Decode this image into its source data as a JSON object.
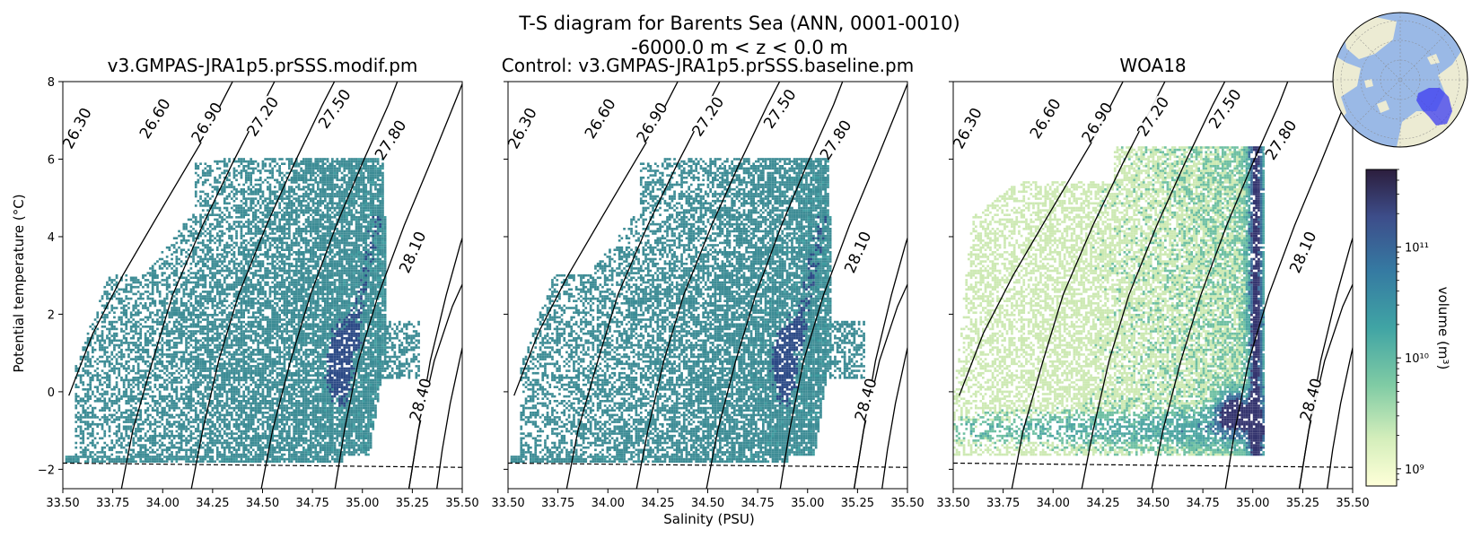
{
  "figure": {
    "title_line1": "T-S diagram for Barents Sea (ANN, 0001-0010)",
    "title_line2": "-6000.0 m < z < 0.0 m",
    "xlabel": "Salinity (PSU)",
    "ylabel": "Potential temperature (°C)"
  },
  "chart_data": {
    "type": "heatmap",
    "xlim": [
      33.5,
      35.5
    ],
    "ylim": [
      -2.5,
      8
    ],
    "xticks": [
      "33.50",
      "33.75",
      "34.00",
      "34.25",
      "34.50",
      "34.75",
      "35.00",
      "35.25",
      "35.50"
    ],
    "yticks": [
      "−2",
      "0",
      "2",
      "4",
      "6",
      "8"
    ],
    "panels": [
      {
        "title": "v3.GMPAS-JRA1p5.prSSS.modif.pm"
      },
      {
        "title": "Control: v3.GMPAS-JRA1p5.prSSS.baseline.pm"
      },
      {
        "title": "WOA18"
      }
    ],
    "density_contours": [
      "26.30",
      "26.60",
      "26.90",
      "27.20",
      "27.50",
      "27.80",
      "28.10",
      "28.40"
    ],
    "freezing_line": {
      "style": "dashed",
      "points": [
        [
          33.5,
          -1.84
        ],
        [
          35.5,
          -1.95
        ]
      ]
    },
    "colorbar": {
      "label": "volume (m³)",
      "scale": "log",
      "range": [
        700000000.0,
        500000000000.0
      ],
      "ticks": [
        {
          "value": 1000000000.0,
          "label": "10⁹"
        },
        {
          "value": 10000000000.0,
          "label": "10¹⁰"
        },
        {
          "value": 100000000000.0,
          "label": "10¹¹"
        }
      ]
    }
  },
  "colors": {
    "model_fill": "#3d8c95",
    "model_core": "#2c4a86",
    "obs_light": "#cde9b3",
    "obs_mid": "#6fc0a3",
    "obs_core": "#35356f",
    "ocean": "#9ab9e6",
    "land": "#ecebd3",
    "region": "#3c3cf0"
  }
}
